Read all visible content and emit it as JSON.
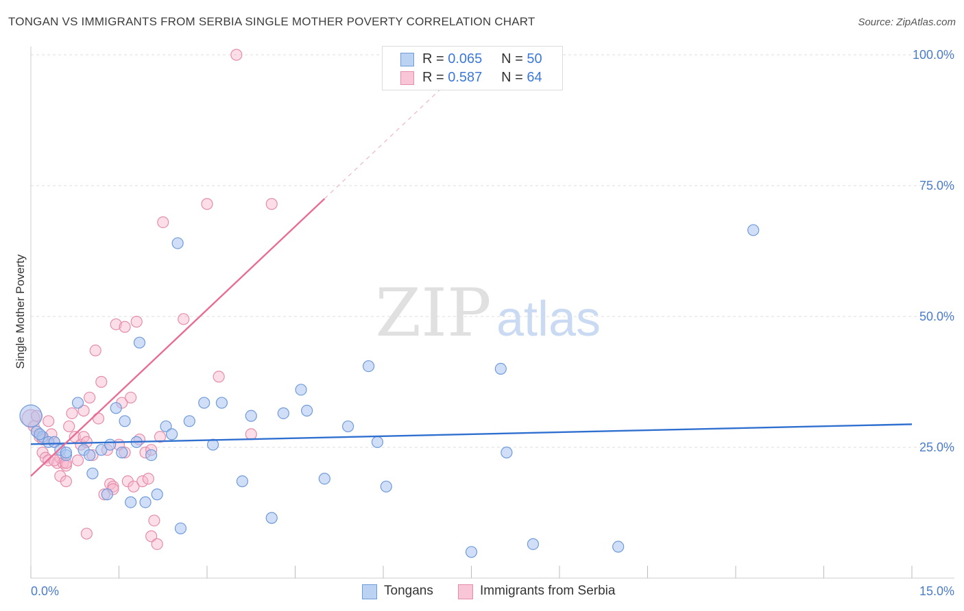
{
  "title": "TONGAN VS IMMIGRANTS FROM SERBIA SINGLE MOTHER POVERTY CORRELATION CHART",
  "source": "Source: ZipAtlas.com",
  "watermark": {
    "zip": "ZIP",
    "atlas": "atlas"
  },
  "legend": [
    {
      "r_label": "R =",
      "r_value": "0.065",
      "n_label": "N =",
      "n_value": "50"
    },
    {
      "r_label": "R =",
      "r_value": "0.587",
      "n_label": "N =",
      "n_value": "64"
    }
  ],
  "chart_data": {
    "type": "scatter",
    "title": "TONGAN VS IMMIGRANTS FROM SERBIA SINGLE MOTHER POVERTY CORRELATION CHART",
    "xlabel": "",
    "ylabel": "Single Mother Poverty",
    "xlim": [
      0,
      15
    ],
    "ylim": [
      0,
      100
    ],
    "x_tick_labels": [
      "0.0%",
      "15.0%"
    ],
    "y_ticks": [
      25,
      50,
      75,
      100
    ],
    "y_tick_labels": [
      "25.0%",
      "50.0%",
      "75.0%",
      "100.0%"
    ],
    "grid": true,
    "legend_position": "top-center",
    "colors": {
      "tongans": "#4a86d8",
      "serbia": "#e8799f",
      "axis": "#4a7cc9"
    },
    "series": [
      {
        "name": "Tongans",
        "R": 0.065,
        "N": 50,
        "trend": {
          "x": [
            0,
            15
          ],
          "y": [
            25.6,
            29.4
          ]
        },
        "points": [
          [
            0.0,
            31.0
          ],
          [
            0.1,
            28.0
          ],
          [
            0.2,
            27.0
          ],
          [
            0.3,
            26.0
          ],
          [
            0.4,
            26.0
          ],
          [
            0.5,
            24.5
          ],
          [
            0.6,
            23.5
          ],
          [
            0.6,
            24.0
          ],
          [
            0.8,
            33.5
          ],
          [
            0.9,
            24.5
          ],
          [
            1.0,
            23.5
          ],
          [
            1.05,
            20.0
          ],
          [
            1.2,
            24.5
          ],
          [
            1.3,
            16.0
          ],
          [
            1.35,
            25.5
          ],
          [
            1.45,
            32.5
          ],
          [
            1.55,
            24.0
          ],
          [
            1.6,
            30.0
          ],
          [
            1.7,
            14.5
          ],
          [
            1.8,
            26.0
          ],
          [
            1.85,
            45.0
          ],
          [
            1.95,
            14.5
          ],
          [
            2.05,
            23.5
          ],
          [
            2.15,
            16.0
          ],
          [
            2.3,
            29.0
          ],
          [
            2.4,
            27.5
          ],
          [
            2.5,
            64.0
          ],
          [
            2.55,
            9.5
          ],
          [
            2.7,
            30.0
          ],
          [
            2.95,
            33.5
          ],
          [
            3.1,
            25.5
          ],
          [
            3.25,
            33.5
          ],
          [
            3.6,
            18.5
          ],
          [
            3.75,
            31.0
          ],
          [
            4.1,
            11.5
          ],
          [
            4.3,
            31.5
          ],
          [
            4.6,
            36.0
          ],
          [
            4.7,
            32.0
          ],
          [
            5.0,
            19.0
          ],
          [
            5.4,
            29.0
          ],
          [
            5.75,
            40.5
          ],
          [
            5.9,
            26.0
          ],
          [
            6.05,
            17.5
          ],
          [
            7.5,
            5.0
          ],
          [
            8.0,
            40.0
          ],
          [
            8.1,
            24.0
          ],
          [
            8.55,
            6.5
          ],
          [
            10.0,
            6.0
          ],
          [
            12.3,
            66.5
          ],
          [
            0.15,
            27.5
          ]
        ]
      },
      {
        "name": "Immigrants from Serbia",
        "R": 0.587,
        "N": 64,
        "trend": {
          "x": [
            0,
            5.0
          ],
          "y": [
            19.5,
            72.5
          ]
        },
        "trend_dashed": {
          "x": [
            5.0,
            7.0
          ],
          "y": [
            72.5,
            93.7
          ]
        },
        "points": [
          [
            0.0,
            30.5
          ],
          [
            0.05,
            29.0
          ],
          [
            0.1,
            28.0
          ],
          [
            0.15,
            27.0
          ],
          [
            0.2,
            24.0
          ],
          [
            0.25,
            23.0
          ],
          [
            0.3,
            22.5
          ],
          [
            0.35,
            27.5
          ],
          [
            0.4,
            26.0
          ],
          [
            0.45,
            22.0
          ],
          [
            0.5,
            19.5
          ],
          [
            0.5,
            23.0
          ],
          [
            0.55,
            22.0
          ],
          [
            0.6,
            18.5
          ],
          [
            0.65,
            29.0
          ],
          [
            0.7,
            31.5
          ],
          [
            0.75,
            27.0
          ],
          [
            0.8,
            22.5
          ],
          [
            0.85,
            25.5
          ],
          [
            0.9,
            27.0
          ],
          [
            0.95,
            26.0
          ],
          [
            0.6,
            21.5
          ],
          [
            0.3,
            30.0
          ],
          [
            0.2,
            26.5
          ],
          [
            0.1,
            31.0
          ],
          [
            0.6,
            22.0
          ],
          [
            0.4,
            22.5
          ],
          [
            0.9,
            32.0
          ],
          [
            1.0,
            34.5
          ],
          [
            1.05,
            23.5
          ],
          [
            1.15,
            30.5
          ],
          [
            1.2,
            37.5
          ],
          [
            1.25,
            16.0
          ],
          [
            1.3,
            24.5
          ],
          [
            1.35,
            18.0
          ],
          [
            1.4,
            17.5
          ],
          [
            1.5,
            25.5
          ],
          [
            1.55,
            33.5
          ],
          [
            1.6,
            24.0
          ],
          [
            1.65,
            18.5
          ],
          [
            1.7,
            34.5
          ],
          [
            1.75,
            17.5
          ],
          [
            1.85,
            26.5
          ],
          [
            1.9,
            18.5
          ],
          [
            1.95,
            24.0
          ],
          [
            2.0,
            19.0
          ],
          [
            2.05,
            24.5
          ],
          [
            2.05,
            8.0
          ],
          [
            2.1,
            11.0
          ],
          [
            2.2,
            27.0
          ],
          [
            1.1,
            43.5
          ],
          [
            1.45,
            48.5
          ],
          [
            1.6,
            48.0
          ],
          [
            1.8,
            49.0
          ],
          [
            2.25,
            68.0
          ],
          [
            2.6,
            49.5
          ],
          [
            3.0,
            71.5
          ],
          [
            3.2,
            38.5
          ],
          [
            3.75,
            27.5
          ],
          [
            4.1,
            71.5
          ],
          [
            3.5,
            100.0
          ],
          [
            1.4,
            17.0
          ],
          [
            0.95,
            8.5
          ],
          [
            2.15,
            6.5
          ]
        ]
      }
    ]
  }
}
